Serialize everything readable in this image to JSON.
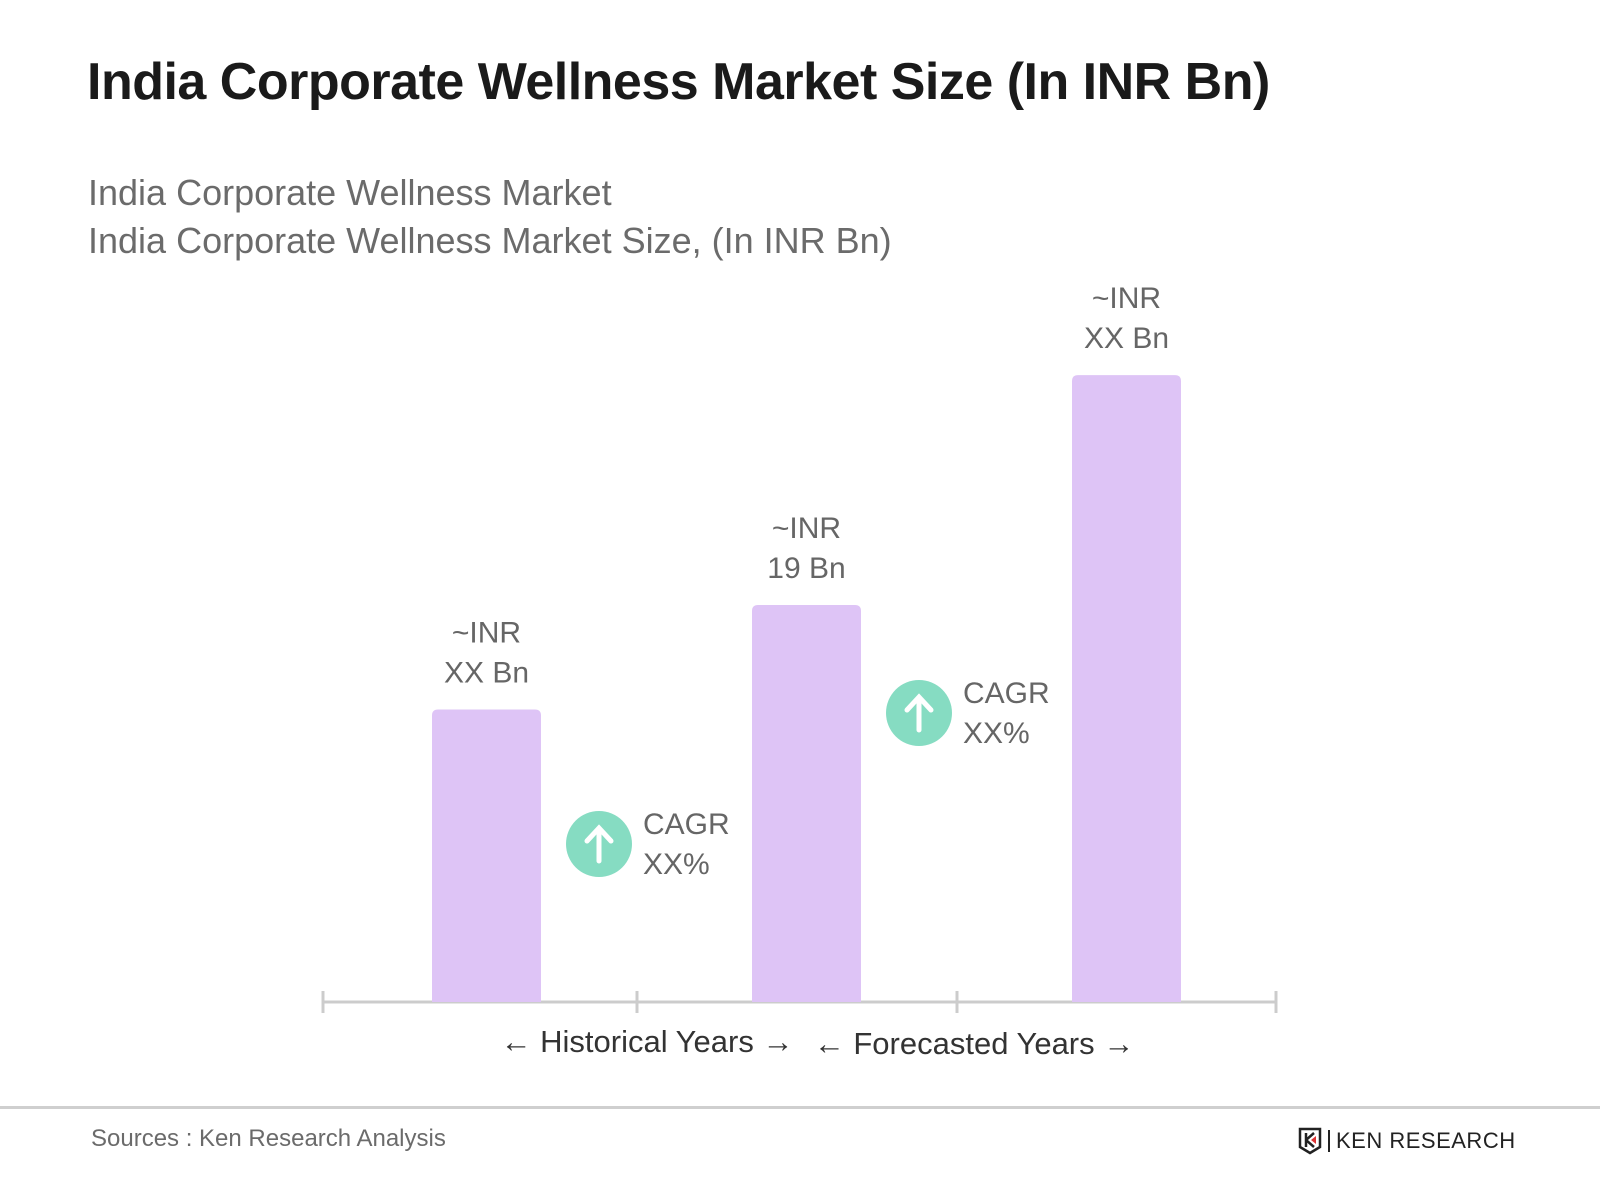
{
  "title": "India Corporate Wellness Market Size (In INR Bn)",
  "subtitle_1": "India Corporate Wellness Market",
  "subtitle_2": "India Corporate Wellness Market Size, (In INR Bn)",
  "source": "Sources : Ken Research Analysis",
  "logo_text": "KEN RESEARCH",
  "colors": {
    "bar": "#dec4f6",
    "cagr_circle": "#86dcc2",
    "axis": "#cccccc",
    "text": "#666666"
  },
  "chart_data": {
    "type": "bar",
    "categories": [
      "",
      "",
      ""
    ],
    "values": [
      14,
      19,
      30
    ],
    "data_labels": [
      [
        "~INR",
        "XX Bn"
      ],
      [
        "~INR",
        "19 Bn"
      ],
      [
        "~INR",
        "XX Bn"
      ]
    ],
    "cagr": [
      [
        "CAGR",
        "XX%"
      ],
      [
        "CAGR",
        "XX%"
      ]
    ],
    "x_sections": [
      "Historical Years",
      "Forecasted Years"
    ],
    "grid": false
  }
}
